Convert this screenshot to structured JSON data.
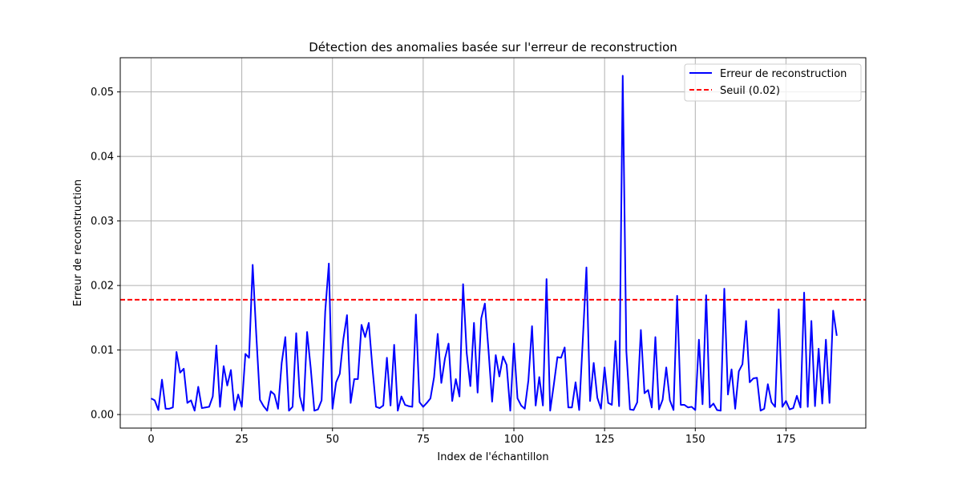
{
  "chart_data": {
    "type": "line",
    "title": "Détection des anomalies basée sur l'erreur de reconstruction",
    "xlabel": "Index de l'échantillon",
    "ylabel": "Erreur de reconstruction",
    "xlim": [
      -8.5,
      197
    ],
    "ylim": [
      -0.0021,
      0.0553
    ],
    "x_ticks": [
      0,
      25,
      50,
      75,
      100,
      125,
      150,
      175
    ],
    "y_ticks": [
      0.0,
      0.01,
      0.02,
      0.03,
      0.04,
      0.05
    ],
    "y_tick_labels": [
      "0.00",
      "0.01",
      "0.02",
      "0.03",
      "0.04",
      "0.05"
    ],
    "grid": true,
    "legend_position": "top-right",
    "series": [
      {
        "name": "Erreur de reconstruction",
        "color": "#0000ff",
        "style": "solid",
        "values": [
          0.0025,
          0.0022,
          0.0007,
          0.0054,
          0.0009,
          0.0009,
          0.0011,
          0.0097,
          0.0065,
          0.0071,
          0.0018,
          0.0022,
          0.0006,
          0.0043,
          0.001,
          0.0011,
          0.0012,
          0.0028,
          0.0107,
          0.0012,
          0.0075,
          0.0045,
          0.0069,
          0.0007,
          0.0031,
          0.0012,
          0.0094,
          0.0088,
          0.0232,
          0.0123,
          0.0023,
          0.0013,
          0.0006,
          0.0036,
          0.0031,
          0.0009,
          0.008,
          0.012,
          0.0006,
          0.0012,
          0.0126,
          0.0028,
          0.0006,
          0.0128,
          0.0072,
          0.0006,
          0.0008,
          0.0022,
          0.016,
          0.0234,
          0.0009,
          0.005,
          0.0063,
          0.0117,
          0.0154,
          0.0018,
          0.0055,
          0.0055,
          0.0139,
          0.012,
          0.0142,
          0.0073,
          0.0012,
          0.001,
          0.0014,
          0.0088,
          0.0014,
          0.0108,
          0.0006,
          0.0028,
          0.0015,
          0.0013,
          0.0012,
          0.0155,
          0.0019,
          0.0012,
          0.0018,
          0.0025,
          0.0058,
          0.0125,
          0.0049,
          0.0087,
          0.011,
          0.0021,
          0.0055,
          0.0028,
          0.0202,
          0.0095,
          0.0044,
          0.0142,
          0.0034,
          0.0149,
          0.0172,
          0.01,
          0.002,
          0.0092,
          0.0059,
          0.009,
          0.0077,
          0.0006,
          0.011,
          0.0025,
          0.0014,
          0.0009,
          0.0053,
          0.0137,
          0.0014,
          0.0058,
          0.0014,
          0.021,
          0.0006,
          0.0046,
          0.0089,
          0.0088,
          0.0104,
          0.0011,
          0.0011,
          0.005,
          0.0007,
          0.0116,
          0.0228,
          0.0021,
          0.008,
          0.0026,
          0.0009,
          0.0073,
          0.0018,
          0.0015,
          0.0114,
          0.0013,
          0.0525,
          0.0098,
          0.0008,
          0.0007,
          0.0019,
          0.0131,
          0.0033,
          0.0038,
          0.0011,
          0.012,
          0.0008,
          0.0023,
          0.0073,
          0.0022,
          0.0007,
          0.0184,
          0.0015,
          0.0015,
          0.0011,
          0.0012,
          0.0007,
          0.0116,
          0.0016,
          0.0185,
          0.0011,
          0.0017,
          0.0007,
          0.0006,
          0.0195,
          0.0031,
          0.007,
          0.0009,
          0.0067,
          0.0078,
          0.0145,
          0.005,
          0.0056,
          0.0057,
          0.0006,
          0.0009,
          0.0047,
          0.0019,
          0.0012,
          0.0163,
          0.0012,
          0.0021,
          0.0008,
          0.001,
          0.0029,
          0.0011,
          0.0189,
          0.0012,
          0.0145,
          0.0013,
          0.0102,
          0.0017,
          0.0116,
          0.0018,
          0.0161,
          0.0122
        ]
      },
      {
        "name": "Seuil (0.02)",
        "color": "#ff0000",
        "style": "dashed",
        "value": 0.0178
      }
    ]
  }
}
